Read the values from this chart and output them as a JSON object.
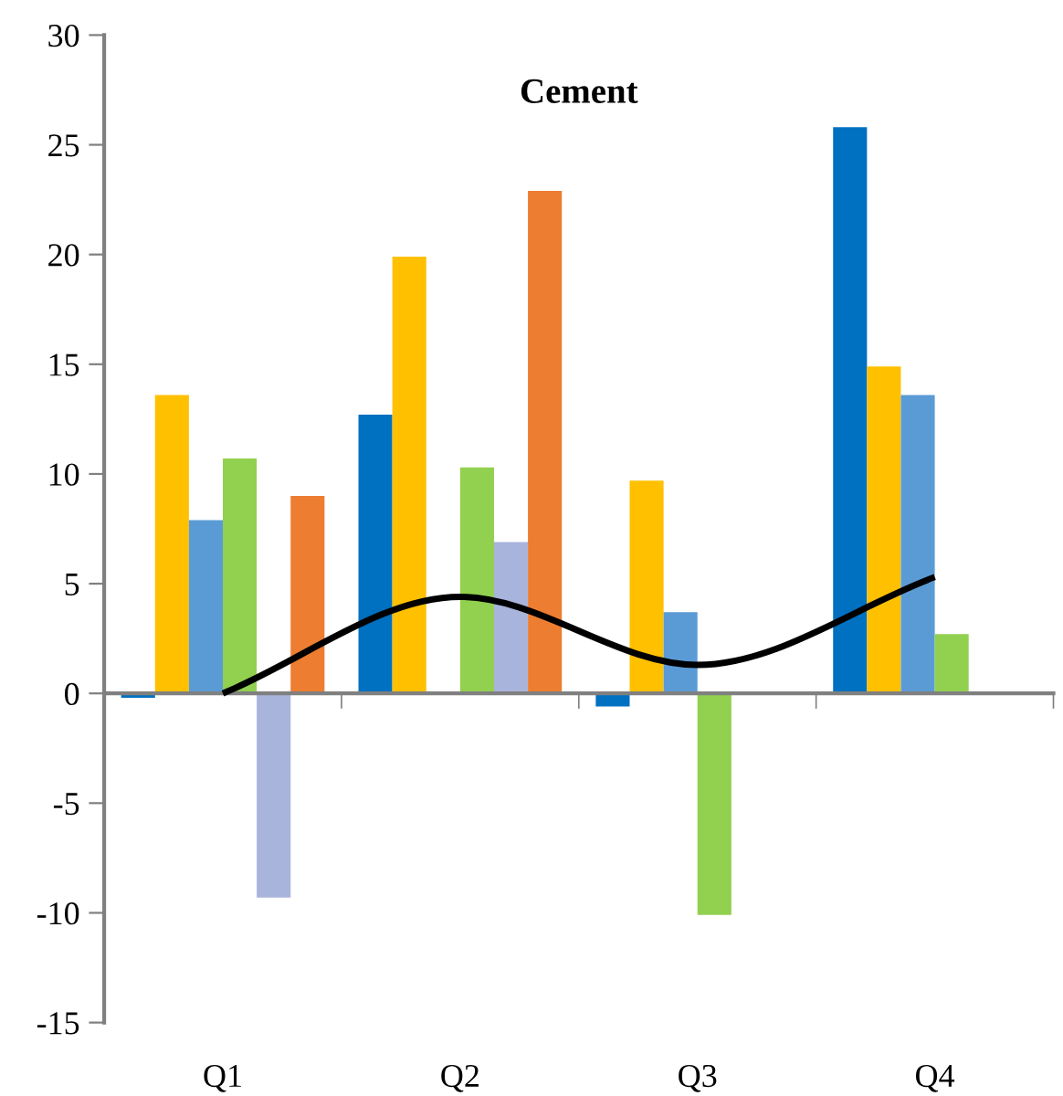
{
  "chart_data": {
    "type": "bar",
    "title": "Cement",
    "categories": [
      "Q1",
      "Q2",
      "Q3",
      "Q4"
    ],
    "series": [
      {
        "color": "#0070c0",
        "values": [
          -0.2,
          12.7,
          -0.6,
          25.8
        ]
      },
      {
        "color": "#ffc000",
        "values": [
          13.6,
          19.9,
          9.7,
          14.9
        ]
      },
      {
        "color": "#5b9bd5",
        "values": [
          7.9,
          null,
          3.7,
          13.6
        ]
      },
      {
        "color": "#92d050",
        "values": [
          10.7,
          10.3,
          -10.1,
          2.7
        ]
      },
      {
        "color": "#a9b4dc",
        "values": [
          -9.3,
          6.9,
          null,
          null
        ]
      },
      {
        "color": "#ed7d31",
        "values": [
          9.0,
          22.9,
          null,
          null
        ]
      },
      {
        "type": "line",
        "color": "#000000",
        "values": [
          0,
          4.4,
          1.3,
          5.3
        ]
      }
    ],
    "ylim": [
      -15,
      30
    ],
    "yticks": [
      -15,
      -10,
      -5,
      0,
      5,
      10,
      15,
      20,
      25,
      30
    ],
    "legend": false
  }
}
